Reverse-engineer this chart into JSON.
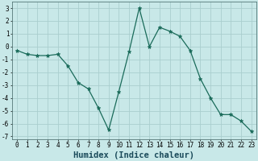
{
  "x": [
    0,
    1,
    2,
    3,
    4,
    5,
    6,
    7,
    8,
    9,
    10,
    11,
    12,
    13,
    14,
    15,
    16,
    17,
    18,
    19,
    20,
    21,
    22,
    23
  ],
  "y": [
    -0.3,
    -0.6,
    -0.7,
    -0.7,
    -0.6,
    -1.5,
    -2.8,
    -3.3,
    -4.8,
    -6.5,
    -3.5,
    -0.4,
    3.0,
    0.0,
    1.5,
    1.2,
    0.8,
    -0.3,
    -2.5,
    -4.0,
    -5.3,
    -5.3,
    -5.8,
    -6.6
  ],
  "line_color": "#1a6b5a",
  "marker": "*",
  "marker_size": 3.5,
  "bg_color": "#c8e8e8",
  "grid_color": "#aacece",
  "xlabel": "Humidex (Indice chaleur)",
  "ylim": [
    -7.2,
    3.5
  ],
  "xlim": [
    -0.5,
    23.5
  ],
  "yticks": [
    -7,
    -6,
    -5,
    -4,
    -3,
    -2,
    -1,
    0,
    1,
    2,
    3
  ],
  "xticks": [
    0,
    1,
    2,
    3,
    4,
    5,
    6,
    7,
    8,
    9,
    10,
    11,
    12,
    13,
    14,
    15,
    16,
    17,
    18,
    19,
    20,
    21,
    22,
    23
  ],
  "tick_fontsize": 5.5,
  "xlabel_fontsize": 7.5,
  "xlabel_fontweight": "bold",
  "xlabel_color": "#1a4a5a"
}
